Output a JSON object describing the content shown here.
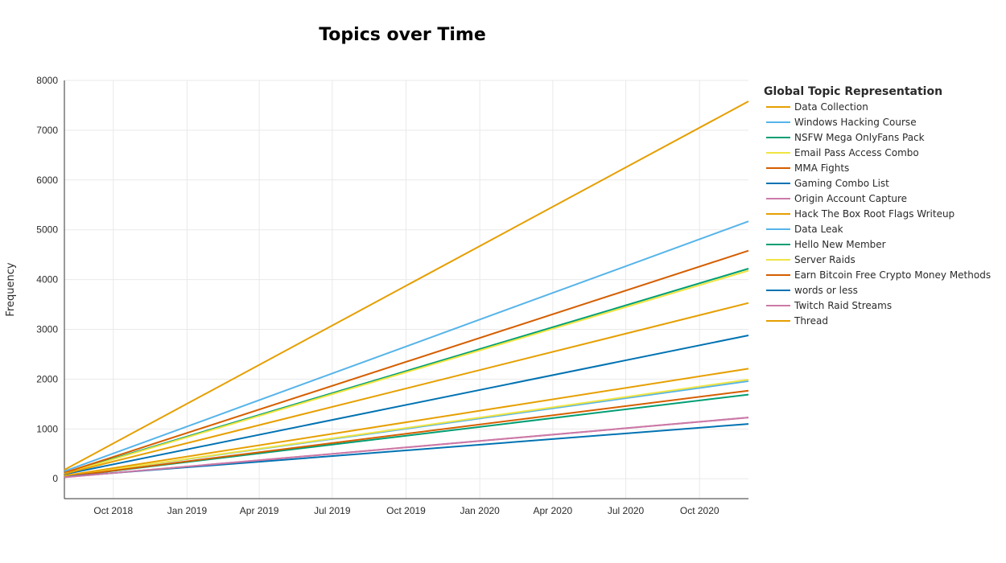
{
  "chart_data": {
    "type": "line",
    "title": "Topics over Time",
    "xlabel": "",
    "ylabel": "Frequency",
    "x_start": "2018-08-01",
    "x_end": "2020-12-01",
    "x_ticks": [
      {
        "date": "2018-10-01",
        "label": "Oct 2018"
      },
      {
        "date": "2019-01-01",
        "label": "Jan 2019"
      },
      {
        "date": "2019-04-01",
        "label": "Apr 2019"
      },
      {
        "date": "2019-07-01",
        "label": "Jul 2019"
      },
      {
        "date": "2019-10-01",
        "label": "Oct 2019"
      },
      {
        "date": "2020-01-01",
        "label": "Jan 2020"
      },
      {
        "date": "2020-04-01",
        "label": "Apr 2020"
      },
      {
        "date": "2020-07-01",
        "label": "Jul 2020"
      },
      {
        "date": "2020-10-01",
        "label": "Oct 2020"
      }
    ],
    "ylim": [
      -400,
      8000
    ],
    "y_ticks": [
      0,
      1000,
      2000,
      3000,
      4000,
      5000,
      6000,
      7000,
      8000
    ],
    "grid": true,
    "legend": {
      "title": "Global Topic Representation",
      "position": "right"
    },
    "series": [
      {
        "name": "Data Collection",
        "color": "#E69F00",
        "x": [
          "2018-08-01",
          "2020-12-01"
        ],
        "y": [
          180,
          7580
        ]
      },
      {
        "name": "Windows Hacking Course",
        "color": "#56B4E9",
        "x": [
          "2018-08-01",
          "2020-12-01"
        ],
        "y": [
          150,
          5170
        ]
      },
      {
        "name": "NSFW Mega OnlyFans Pack",
        "color": "#009E73",
        "x": [
          "2018-08-01",
          "2020-12-01"
        ],
        "y": [
          110,
          4220
        ]
      },
      {
        "name": "Email Pass Access Combo",
        "color": "#F0E442",
        "x": [
          "2018-08-01",
          "2020-12-01"
        ],
        "y": [
          100,
          4180
        ]
      },
      {
        "name": "MMA Fights",
        "color": "#D55E00",
        "x": [
          "2018-08-01",
          "2020-12-01"
        ],
        "y": [
          120,
          4580
        ]
      },
      {
        "name": "Gaming Combo List",
        "color": "#0072B2",
        "x": [
          "2018-08-01",
          "2020-12-01"
        ],
        "y": [
          90,
          2880
        ]
      },
      {
        "name": "Origin Account Capture",
        "color": "#CC79A7",
        "x": [
          "2018-08-01",
          "2020-12-01"
        ],
        "y": [
          30,
          1230
        ]
      },
      {
        "name": "Hack The Box Root Flags Writeup",
        "color": "#E69F00",
        "x": [
          "2018-08-01",
          "2020-12-01"
        ],
        "y": [
          100,
          3530
        ]
      },
      {
        "name": "Data Leak",
        "color": "#56B4E9",
        "x": [
          "2018-08-01",
          "2020-12-01"
        ],
        "y": [
          50,
          1960
        ]
      },
      {
        "name": "Hello New Member",
        "color": "#009E73",
        "x": [
          "2018-08-01",
          "2020-12-01"
        ],
        "y": [
          40,
          1690
        ]
      },
      {
        "name": "Server Raids",
        "color": "#F0E442",
        "x": [
          "2018-08-01",
          "2020-12-01"
        ],
        "y": [
          50,
          1990
        ]
      },
      {
        "name": "Earn Bitcoin Free Crypto Money Methods",
        "color": "#D55E00",
        "x": [
          "2018-08-01",
          "2020-12-01"
        ],
        "y": [
          40,
          1770
        ]
      },
      {
        "name": "words or less",
        "color": "#0072B2",
        "x": [
          "2018-08-01",
          "2020-12-01"
        ],
        "y": [
          40,
          1100
        ]
      },
      {
        "name": "Twitch Raid Streams",
        "color": "#CC79A7",
        "x": [
          "2018-08-01",
          "2020-12-01"
        ],
        "y": [
          30,
          1230
        ]
      },
      {
        "name": "Thread",
        "color": "#E69F00",
        "x": [
          "2018-08-01",
          "2020-12-01"
        ],
        "y": [
          60,
          2210
        ]
      }
    ]
  }
}
